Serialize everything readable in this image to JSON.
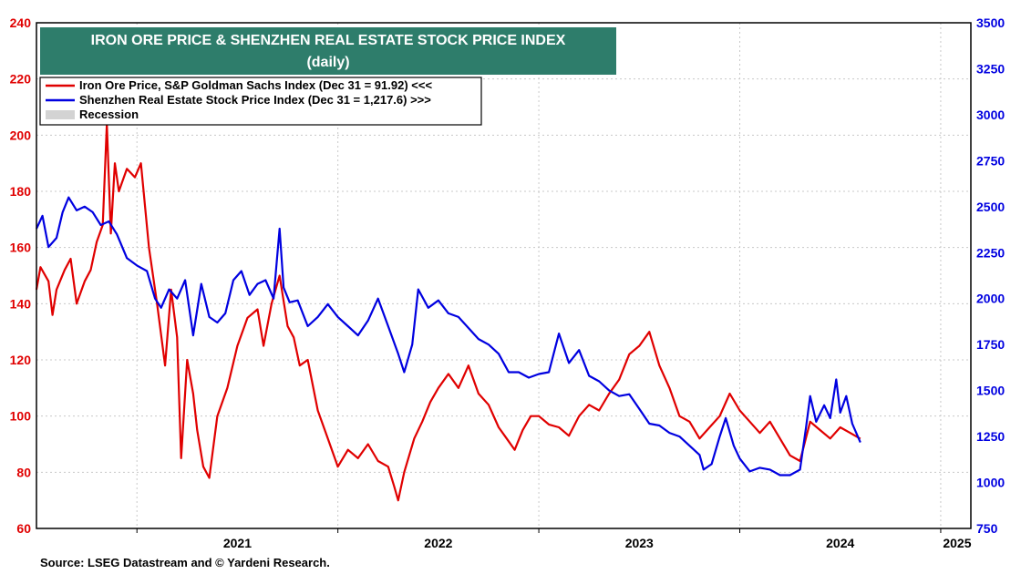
{
  "chart_data": {
    "type": "line",
    "title": "IRON ORE PRICE & SHENZHEN REAL ESTATE STOCK PRICE INDEX",
    "subtitle": "(daily)",
    "x_ticks": [
      "2021",
      "2022",
      "2023",
      "2024",
      "2025"
    ],
    "y_left": {
      "ticks": [
        60,
        80,
        100,
        120,
        140,
        160,
        180,
        200,
        220,
        240
      ],
      "ylim": [
        60,
        240
      ]
    },
    "y_right": {
      "ticks": [
        750,
        1000,
        1250,
        1500,
        1750,
        2000,
        2250,
        2500,
        2750,
        3000,
        3250,
        3500
      ],
      "ylim": [
        750,
        3500
      ]
    },
    "xlim": [
      2020.5,
      2025.15
    ],
    "legend": {
      "position": "top-left",
      "recession_label": "Recession"
    },
    "series": [
      {
        "name": "Iron Ore Price, S&P Goldman Sachs Index (Dec 31 = 91.92) <<<",
        "axis": "left",
        "color": "#e00000",
        "points": [
          [
            2020.5,
            145
          ],
          [
            2020.52,
            153
          ],
          [
            2020.56,
            148
          ],
          [
            2020.58,
            136
          ],
          [
            2020.6,
            145
          ],
          [
            2020.64,
            152
          ],
          [
            2020.67,
            156
          ],
          [
            2020.7,
            140
          ],
          [
            2020.74,
            148
          ],
          [
            2020.77,
            152
          ],
          [
            2020.8,
            162
          ],
          [
            2020.83,
            168
          ],
          [
            2020.85,
            204
          ],
          [
            2020.87,
            165
          ],
          [
            2020.89,
            190
          ],
          [
            2020.91,
            180
          ],
          [
            2020.95,
            188
          ],
          [
            2020.99,
            185
          ],
          [
            2021.02,
            190
          ],
          [
            2021.06,
            160
          ],
          [
            2021.1,
            140
          ],
          [
            2021.14,
            118
          ],
          [
            2021.17,
            145
          ],
          [
            2021.2,
            128
          ],
          [
            2021.22,
            85
          ],
          [
            2021.25,
            120
          ],
          [
            2021.28,
            108
          ],
          [
            2021.3,
            95
          ],
          [
            2021.33,
            82
          ],
          [
            2021.36,
            78
          ],
          [
            2021.4,
            100
          ],
          [
            2021.45,
            110
          ],
          [
            2021.5,
            125
          ],
          [
            2021.55,
            135
          ],
          [
            2021.6,
            138
          ],
          [
            2021.63,
            125
          ],
          [
            2021.67,
            140
          ],
          [
            2021.71,
            150
          ],
          [
            2021.75,
            132
          ],
          [
            2021.78,
            128
          ],
          [
            2021.81,
            118
          ],
          [
            2021.85,
            120
          ],
          [
            2021.9,
            102
          ],
          [
            2021.95,
            92
          ],
          [
            2022.0,
            82
          ],
          [
            2022.05,
            88
          ],
          [
            2022.1,
            85
          ],
          [
            2022.15,
            90
          ],
          [
            2022.2,
            84
          ],
          [
            2022.25,
            82
          ],
          [
            2022.28,
            75
          ],
          [
            2022.3,
            70
          ],
          [
            2022.33,
            80
          ],
          [
            2022.38,
            92
          ],
          [
            2022.42,
            98
          ],
          [
            2022.46,
            105
          ],
          [
            2022.5,
            110
          ],
          [
            2022.55,
            115
          ],
          [
            2022.6,
            110
          ],
          [
            2022.65,
            118
          ],
          [
            2022.7,
            108
          ],
          [
            2022.75,
            104
          ],
          [
            2022.8,
            96
          ],
          [
            2022.84,
            92
          ],
          [
            2022.88,
            88
          ],
          [
            2022.92,
            95
          ],
          [
            2022.96,
            100
          ],
          [
            2023.0,
            100
          ],
          [
            2023.05,
            97
          ],
          [
            2023.1,
            96
          ],
          [
            2023.15,
            93
          ],
          [
            2023.2,
            100
          ],
          [
            2023.25,
            104
          ],
          [
            2023.3,
            102
          ],
          [
            2023.35,
            108
          ],
          [
            2023.4,
            113
          ],
          [
            2023.45,
            122
          ],
          [
            2023.5,
            125
          ],
          [
            2023.55,
            130
          ],
          [
            2023.6,
            118
          ],
          [
            2023.65,
            110
          ],
          [
            2023.7,
            100
          ],
          [
            2023.75,
            98
          ],
          [
            2023.8,
            92
          ],
          [
            2023.85,
            96
          ],
          [
            2023.9,
            100
          ],
          [
            2023.95,
            108
          ],
          [
            2024.0,
            102
          ],
          [
            2024.05,
            98
          ],
          [
            2024.1,
            94
          ],
          [
            2024.15,
            98
          ],
          [
            2024.2,
            92
          ],
          [
            2024.25,
            86
          ],
          [
            2024.3,
            84
          ],
          [
            2024.35,
            98
          ],
          [
            2024.4,
            95
          ],
          [
            2024.45,
            92
          ],
          [
            2024.5,
            96
          ],
          [
            2024.55,
            94
          ],
          [
            2024.6,
            91.92
          ]
        ]
      },
      {
        "name": "Shenzhen Real Estate Stock Price Index (Dec 31 = 1,217.6) >>>",
        "axis": "right",
        "color": "#0000e0",
        "points": [
          [
            2020.5,
            2380
          ],
          [
            2020.53,
            2450
          ],
          [
            2020.56,
            2280
          ],
          [
            2020.6,
            2330
          ],
          [
            2020.63,
            2470
          ],
          [
            2020.66,
            2550
          ],
          [
            2020.7,
            2480
          ],
          [
            2020.74,
            2500
          ],
          [
            2020.78,
            2470
          ],
          [
            2020.82,
            2400
          ],
          [
            2020.86,
            2420
          ],
          [
            2020.9,
            2350
          ],
          [
            2020.95,
            2220
          ],
          [
            2021.0,
            2180
          ],
          [
            2021.05,
            2150
          ],
          [
            2021.09,
            2000
          ],
          [
            2021.12,
            1950
          ],
          [
            2021.16,
            2050
          ],
          [
            2021.2,
            2000
          ],
          [
            2021.24,
            2100
          ],
          [
            2021.28,
            1800
          ],
          [
            2021.32,
            2080
          ],
          [
            2021.36,
            1900
          ],
          [
            2021.4,
            1870
          ],
          [
            2021.44,
            1920
          ],
          [
            2021.48,
            2100
          ],
          [
            2021.52,
            2150
          ],
          [
            2021.56,
            2020
          ],
          [
            2021.6,
            2080
          ],
          [
            2021.64,
            2100
          ],
          [
            2021.68,
            2000
          ],
          [
            2021.71,
            2380
          ],
          [
            2021.73,
            2060
          ],
          [
            2021.76,
            1980
          ],
          [
            2021.8,
            1990
          ],
          [
            2021.85,
            1850
          ],
          [
            2021.9,
            1900
          ],
          [
            2021.95,
            1970
          ],
          [
            2022.0,
            1900
          ],
          [
            2022.05,
            1850
          ],
          [
            2022.1,
            1800
          ],
          [
            2022.15,
            1880
          ],
          [
            2022.2,
            2000
          ],
          [
            2022.25,
            1850
          ],
          [
            2022.3,
            1700
          ],
          [
            2022.33,
            1600
          ],
          [
            2022.37,
            1750
          ],
          [
            2022.4,
            2050
          ],
          [
            2022.45,
            1950
          ],
          [
            2022.5,
            1990
          ],
          [
            2022.55,
            1920
          ],
          [
            2022.6,
            1900
          ],
          [
            2022.65,
            1840
          ],
          [
            2022.7,
            1780
          ],
          [
            2022.75,
            1750
          ],
          [
            2022.8,
            1700
          ],
          [
            2022.85,
            1600
          ],
          [
            2022.9,
            1600
          ],
          [
            2022.95,
            1570
          ],
          [
            2023.0,
            1590
          ],
          [
            2023.05,
            1600
          ],
          [
            2023.1,
            1810
          ],
          [
            2023.15,
            1650
          ],
          [
            2023.2,
            1720
          ],
          [
            2023.25,
            1580
          ],
          [
            2023.3,
            1550
          ],
          [
            2023.35,
            1500
          ],
          [
            2023.4,
            1470
          ],
          [
            2023.45,
            1480
          ],
          [
            2023.5,
            1400
          ],
          [
            2023.55,
            1320
          ],
          [
            2023.6,
            1310
          ],
          [
            2023.65,
            1270
          ],
          [
            2023.7,
            1250
          ],
          [
            2023.75,
            1200
          ],
          [
            2023.8,
            1150
          ],
          [
            2023.82,
            1070
          ],
          [
            2023.86,
            1100
          ],
          [
            2023.9,
            1250
          ],
          [
            2023.93,
            1350
          ],
          [
            2023.97,
            1200
          ],
          [
            2024.0,
            1130
          ],
          [
            2024.05,
            1060
          ],
          [
            2024.1,
            1080
          ],
          [
            2024.15,
            1070
          ],
          [
            2024.2,
            1040
          ],
          [
            2024.25,
            1040
          ],
          [
            2024.3,
            1070
          ],
          [
            2024.33,
            1300
          ],
          [
            2024.35,
            1470
          ],
          [
            2024.38,
            1330
          ],
          [
            2024.42,
            1420
          ],
          [
            2024.45,
            1350
          ],
          [
            2024.48,
            1560
          ],
          [
            2024.5,
            1380
          ],
          [
            2024.53,
            1470
          ],
          [
            2024.56,
            1320
          ],
          [
            2024.6,
            1217.6
          ]
        ]
      }
    ],
    "annotations": [
      "Source: LSEG Datastream and © Yardeni Research."
    ]
  }
}
